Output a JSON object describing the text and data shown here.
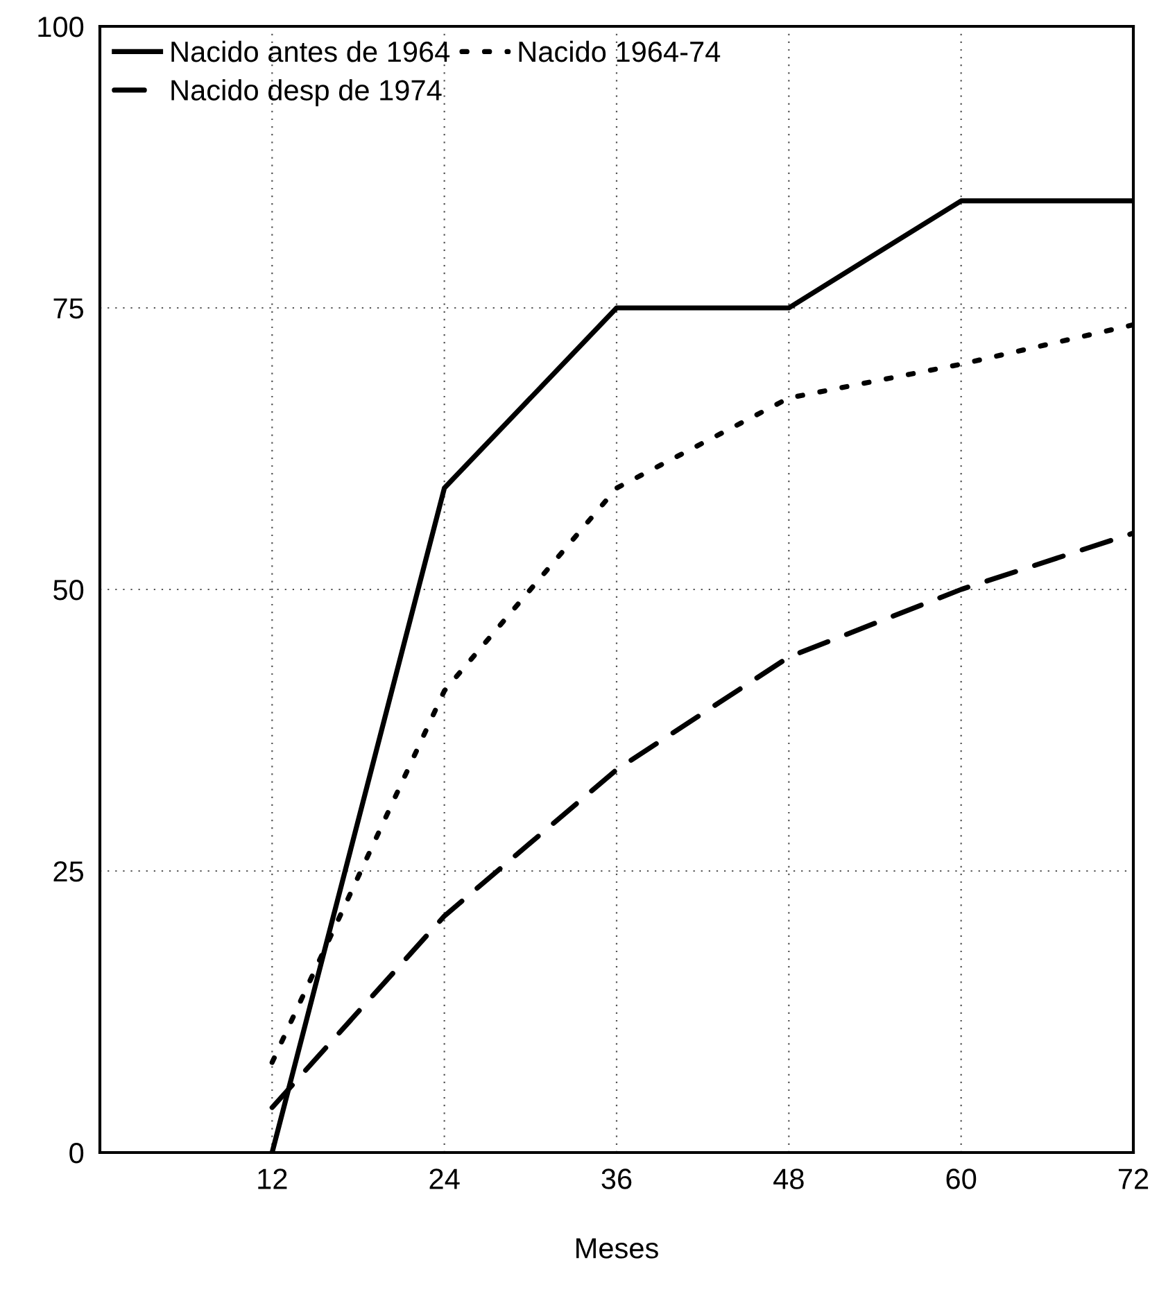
{
  "chart_data": {
    "type": "line",
    "xlabel": "Meses",
    "x": [
      12,
      24,
      36,
      48,
      60,
      72
    ],
    "series": [
      {
        "name": "Nacido antes de 1964",
        "color": "#000000",
        "line_style": "solid",
        "values": [
          0,
          59,
          75,
          75,
          84.5,
          84.5
        ]
      },
      {
        "name": "Nacido 1964-74",
        "color": "#000000",
        "line_style": "dotted",
        "values": [
          8,
          41,
          59,
          67,
          70,
          73.5
        ]
      },
      {
        "name": "Nacido desp de 1974",
        "color": "#000000",
        "line_style": "dashed",
        "values": [
          4,
          21,
          34,
          44,
          50,
          55
        ]
      }
    ],
    "xlim": [
      0,
      72
    ],
    "xticks": [
      12,
      24,
      36,
      48,
      60,
      72
    ],
    "ylim": [
      0,
      100
    ],
    "yticks": [
      0,
      25,
      50,
      75,
      100
    ],
    "grid": true,
    "legend": "top left",
    "marker": "none"
  }
}
